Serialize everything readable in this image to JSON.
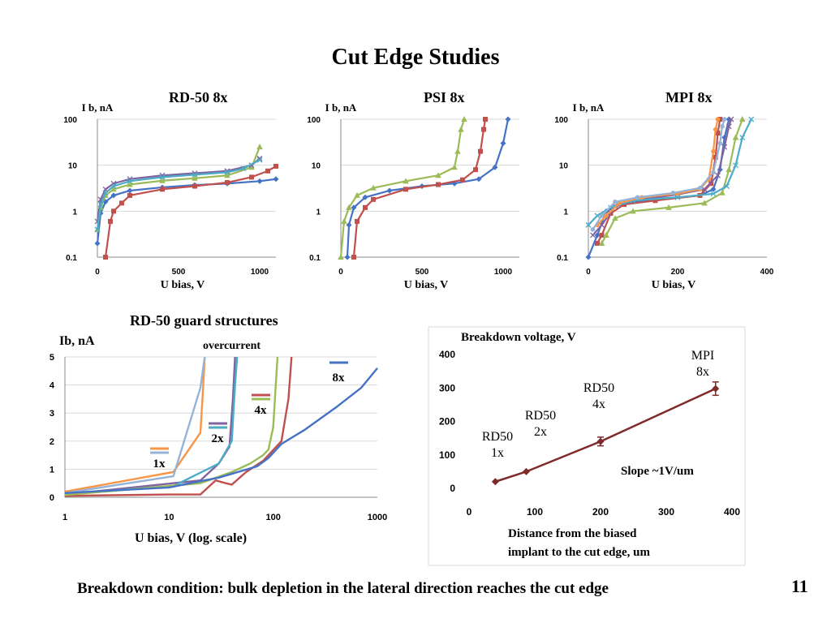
{
  "slide": {
    "title": "Cut Edge Studies",
    "footer": "Breakdown condition: bulk depletion in the lateral direction reaches the cut edge",
    "page_number": "11",
    "section_label": "RD-50 guard structures"
  },
  "colors": {
    "blue": "#4472c4",
    "red": "#c0504d",
    "green": "#9bbb59",
    "purple": "#8064a2",
    "teal": "#4bacc6",
    "orange": "#f79646",
    "lightblue": "#95b3d7",
    "darkred": "#7f2a2a",
    "grid": "#d9d9d9"
  },
  "chart_data": [
    {
      "id": "rd50",
      "type": "line",
      "title": "RD-50    8x",
      "ylabel": "I b, nA",
      "xlabel": "U bias, V",
      "yscale": "log",
      "ylim": [
        0.1,
        100
      ],
      "xlim": [
        0,
        1100
      ],
      "xticks": [
        0,
        500,
        1000
      ],
      "yticks": [
        0.1,
        1,
        10,
        100
      ],
      "ytick_labels": [
        "0.1",
        "1",
        "10",
        "100"
      ],
      "series": [
        {
          "color": "blue",
          "marker": "diamond",
          "x": [
            0,
            20,
            50,
            100,
            200,
            400,
            600,
            800,
            1000,
            1100
          ],
          "y": [
            0.2,
            0.9,
            1.6,
            2.2,
            2.8,
            3.3,
            3.7,
            4.0,
            4.5,
            5.0
          ]
        },
        {
          "color": "red",
          "marker": "square",
          "x": [
            50,
            80,
            100,
            150,
            200,
            400,
            600,
            800,
            950,
            1050,
            1100
          ],
          "y": [
            0.1,
            0.6,
            1.0,
            1.5,
            2.2,
            3.0,
            3.5,
            4.2,
            5.5,
            7.5,
            9.5
          ]
        },
        {
          "color": "green",
          "marker": "triangle",
          "x": [
            0,
            20,
            50,
            100,
            200,
            400,
            600,
            800,
            950,
            1000
          ],
          "y": [
            0.4,
            1.2,
            2.2,
            3.0,
            3.8,
            4.6,
            5.2,
            6.0,
            9.0,
            25
          ]
        },
        {
          "color": "purple",
          "marker": "x",
          "x": [
            0,
            20,
            50,
            100,
            200,
            400,
            600,
            800,
            950,
            1000
          ],
          "y": [
            0.6,
            1.8,
            3.0,
            4.0,
            5.0,
            6.0,
            6.7,
            7.5,
            10.0,
            14.0
          ]
        },
        {
          "color": "teal",
          "marker": "x",
          "x": [
            0,
            20,
            50,
            100,
            200,
            400,
            600,
            800,
            900,
            1000
          ],
          "y": [
            0.4,
            1.4,
            2.5,
            3.5,
            4.5,
            5.5,
            6.2,
            7.0,
            8.5,
            13.0
          ]
        }
      ]
    },
    {
      "id": "psi",
      "type": "line",
      "title": "PSI    8x",
      "ylabel": "I b, nA",
      "xlabel": "U bias, V",
      "yscale": "log",
      "ylim": [
        0.1,
        100
      ],
      "xlim": [
        0,
        1100
      ],
      "xticks": [
        0,
        500,
        1000
      ],
      "yticks": [
        0.1,
        1,
        10,
        100
      ],
      "ytick_labels": [
        "0.1",
        "1",
        "10",
        "100"
      ],
      "series": [
        {
          "color": "blue",
          "marker": "diamond",
          "x": [
            40,
            50,
            80,
            150,
            300,
            500,
            700,
            850,
            950,
            1000,
            1030
          ],
          "y": [
            0.1,
            0.5,
            1.2,
            2.0,
            2.8,
            3.5,
            4.0,
            5.0,
            9.0,
            30,
            100
          ]
        },
        {
          "color": "red",
          "marker": "square",
          "x": [
            80,
            100,
            150,
            200,
            400,
            600,
            750,
            830,
            860,
            880,
            890
          ],
          "y": [
            0.1,
            0.6,
            1.2,
            1.8,
            3.0,
            3.8,
            4.8,
            8.0,
            20,
            60,
            100
          ]
        },
        {
          "color": "green",
          "marker": "triangle",
          "x": [
            0,
            20,
            50,
            100,
            200,
            400,
            600,
            700,
            720,
            740,
            760
          ],
          "y": [
            0.1,
            0.6,
            1.2,
            2.2,
            3.2,
            4.5,
            6.0,
            9.0,
            20,
            60,
            100
          ]
        }
      ]
    },
    {
      "id": "mpi",
      "type": "line",
      "title": "MPI    8x",
      "ylabel": "I b, nA",
      "xlabel": "U bias, V",
      "yscale": "log",
      "ylim": [
        0.1,
        100
      ],
      "xlim": [
        0,
        400
      ],
      "xticks": [
        0,
        200,
        400
      ],
      "yticks": [
        0.1,
        1,
        10,
        100
      ],
      "ytick_labels": [
        "0.1",
        "1",
        "10",
        "100"
      ],
      "series": [
        {
          "color": "blue",
          "marker": "diamond",
          "x": [
            0,
            20,
            40,
            80,
            150,
            250,
            280,
            295,
            305,
            315
          ],
          "y": [
            0.1,
            0.3,
            1.0,
            1.5,
            1.8,
            2.2,
            3.0,
            8.0,
            40,
            100
          ]
        },
        {
          "color": "red",
          "marker": "square",
          "x": [
            20,
            30,
            50,
            80,
            150,
            250,
            275,
            285,
            290,
            295
          ],
          "y": [
            0.2,
            0.3,
            0.9,
            1.4,
            1.7,
            2.2,
            4.0,
            15,
            50,
            100
          ]
        },
        {
          "color": "green",
          "marker": "triangle",
          "x": [
            30,
            40,
            60,
            100,
            180,
            260,
            300,
            315,
            330,
            345
          ],
          "y": [
            0.2,
            0.3,
            0.7,
            1.0,
            1.2,
            1.5,
            2.5,
            8.0,
            40,
            100
          ]
        },
        {
          "color": "purple",
          "marker": "x",
          "x": [
            10,
            30,
            60,
            120,
            200,
            260,
            290,
            305,
            315,
            320
          ],
          "y": [
            0.3,
            0.5,
            1.3,
            1.8,
            2.3,
            3.0,
            6.0,
            25,
            70,
            100
          ]
        },
        {
          "color": "teal",
          "marker": "x",
          "x": [
            0,
            20,
            50,
            100,
            200,
            280,
            310,
            330,
            345,
            365
          ],
          "y": [
            0.5,
            0.8,
            1.2,
            1.7,
            2.0,
            2.4,
            3.5,
            10,
            40,
            100
          ]
        },
        {
          "color": "orange",
          "marker": "circle",
          "x": [
            20,
            40,
            70,
            120,
            200,
            250,
            270,
            280,
            285,
            290
          ],
          "y": [
            0.5,
            0.8,
            1.5,
            2.0,
            2.4,
            3.0,
            5.0,
            20,
            60,
            100
          ]
        },
        {
          "color": "lightblue",
          "marker": "circle",
          "x": [
            10,
            30,
            60,
            110,
            190,
            250,
            280,
            295,
            300,
            305
          ],
          "y": [
            0.4,
            0.8,
            1.6,
            2.0,
            2.5,
            3.2,
            7.0,
            30,
            70,
            100
          ]
        }
      ]
    },
    {
      "id": "guard",
      "type": "line",
      "ylabel": "Ib, nA",
      "xlabel": "U bias, V (log. scale)",
      "annotation": "overcurrent",
      "xscale": "log",
      "xlim": [
        1,
        1000
      ],
      "ylim": [
        0,
        5
      ],
      "xticks": [
        1,
        10,
        100,
        1000
      ],
      "xtick_labels": [
        "1",
        "10",
        "100",
        "1000"
      ],
      "yticks": [
        0,
        1,
        2,
        3,
        4,
        5
      ],
      "legend": [
        {
          "label": "1x",
          "colors": [
            "orange",
            "lightblue"
          ]
        },
        {
          "label": "2x",
          "colors": [
            "purple",
            "teal"
          ]
        },
        {
          "label": "4x",
          "colors": [
            "red",
            "green"
          ]
        },
        {
          "label": "8x",
          "colors": [
            "blue"
          ]
        }
      ],
      "series": [
        {
          "color": "orange",
          "x": [
            1,
            11,
            20,
            21,
            22
          ],
          "y": [
            0.2,
            0.9,
            2.3,
            3.6,
            5.0
          ]
        },
        {
          "color": "lightblue",
          "x": [
            1,
            11,
            20,
            22
          ],
          "y": [
            0.15,
            0.75,
            3.9,
            5.0
          ]
        },
        {
          "color": "purple",
          "x": [
            1,
            20,
            30,
            38,
            41,
            43
          ],
          "y": [
            0.1,
            0.6,
            1.2,
            1.8,
            3.5,
            5.0
          ]
        },
        {
          "color": "teal",
          "x": [
            1,
            11,
            30,
            40,
            43,
            45
          ],
          "y": [
            0.12,
            0.4,
            1.2,
            2.0,
            4.0,
            5.0
          ]
        },
        {
          "color": "red",
          "x": [
            1,
            10,
            20,
            28,
            35,
            40,
            55,
            80,
            120,
            140,
            150
          ],
          "y": [
            0.05,
            0.1,
            0.1,
            0.6,
            0.5,
            0.45,
            0.9,
            1.3,
            2.0,
            3.5,
            5.0
          ]
        },
        {
          "color": "green",
          "x": [
            1,
            20,
            40,
            60,
            80,
            90,
            100,
            105,
            110
          ],
          "y": [
            0.08,
            0.5,
            0.9,
            1.2,
            1.5,
            1.7,
            2.5,
            3.8,
            5.0
          ]
        },
        {
          "color": "blue",
          "x": [
            1,
            10,
            30,
            70,
            90,
            120,
            200,
            400,
            700,
            1000
          ],
          "y": [
            0.15,
            0.35,
            0.7,
            1.1,
            1.4,
            1.9,
            2.4,
            3.2,
            3.9,
            4.6
          ]
        }
      ]
    },
    {
      "id": "breakdown",
      "type": "scatter",
      "title": "Breakdown voltage, V",
      "xlabel": "Distance from the biased implant to the cut edge, um",
      "xlabel_lines": [
        "Distance from the biased",
        "implant to the cut edge, um"
      ],
      "xlim": [
        0,
        400
      ],
      "ylim": [
        0,
        400
      ],
      "xticks": [
        0,
        100,
        200,
        300,
        400
      ],
      "yticks": [
        0,
        100,
        200,
        300,
        400
      ],
      "annotation": "Slope ~1V/um",
      "points": [
        {
          "x": 40,
          "y": 20,
          "label": [
            "RD50",
            "1x"
          ]
        },
        {
          "x": 87,
          "y": 50,
          "label": [
            "RD50",
            "2x"
          ]
        },
        {
          "x": 200,
          "y": 140,
          "err": 13,
          "label": [
            "RD50",
            "4x"
          ]
        },
        {
          "x": 375,
          "y": 298,
          "err": 20,
          "label": [
            "MPI",
            "8x"
          ]
        }
      ]
    }
  ]
}
